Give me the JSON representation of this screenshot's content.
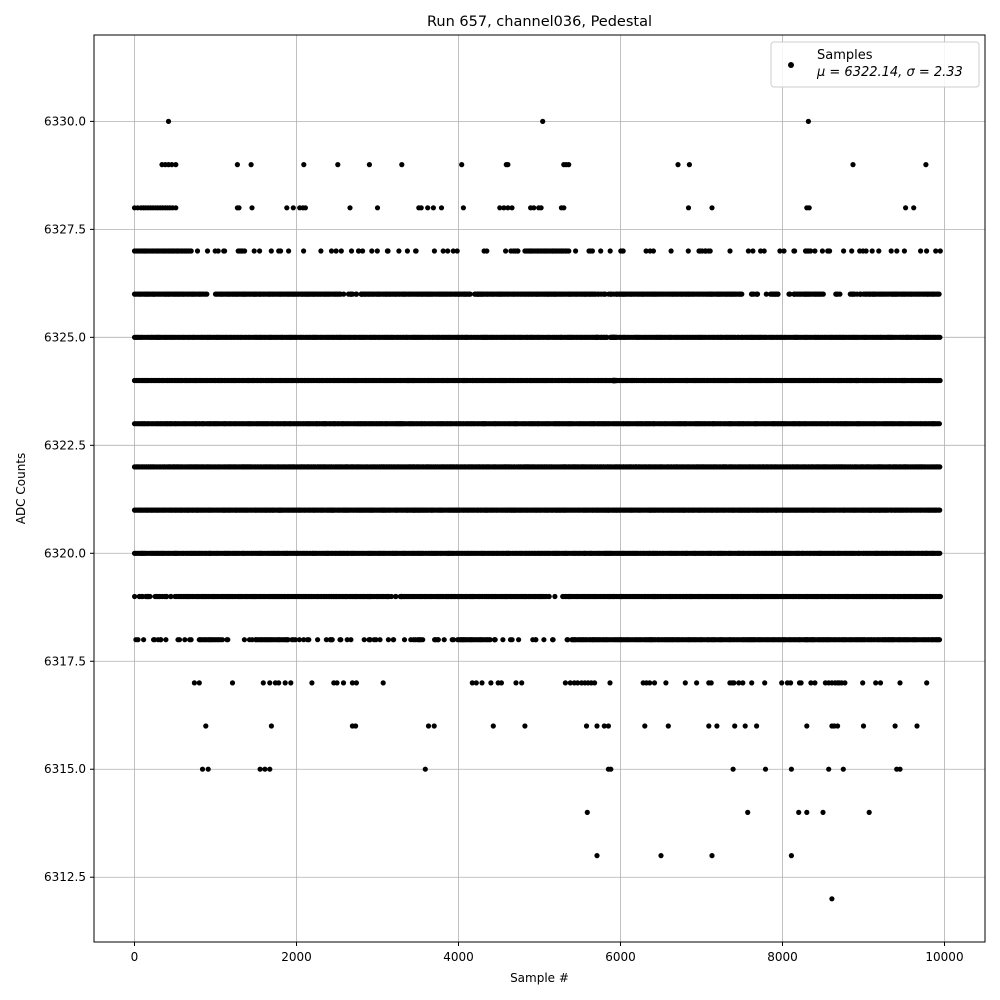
{
  "chart_data": {
    "type": "scatter",
    "title": "Run 657, channel036, Pedestal",
    "xlabel": "Sample #",
    "ylabel": "ADC Counts",
    "xlim": [
      -500,
      10500
    ],
    "ylim": [
      6311.0,
      6332.0
    ],
    "x_ticks": [
      0,
      2000,
      4000,
      6000,
      8000,
      10000
    ],
    "x_tick_labels": [
      "0",
      "2000",
      "4000",
      "6000",
      "8000",
      "10000"
    ],
    "y_ticks": [
      6312.5,
      6315.0,
      6317.5,
      6320.0,
      6322.5,
      6325.0,
      6327.5,
      6330.0
    ],
    "y_tick_labels": [
      "6312.5",
      "6315.0",
      "6317.5",
      "6320.0",
      "6322.5",
      "6325.0",
      "6327.5",
      "6330.0"
    ],
    "grid": true,
    "legend": {
      "position": "top-right",
      "label": "Samples",
      "stats_text": "μ = 6322.14, σ = 2.33"
    },
    "series": [
      {
        "name": "Samples",
        "color": "#000000",
        "x_range": [
          0,
          9950
        ],
        "mean": 6322.14,
        "std": 2.33,
        "levels": [
          {
            "y": 6330,
            "x": [
              420,
              5040,
              8320
            ]
          },
          {
            "y": 6329,
            "x": [
              340,
              380,
              420,
              460,
              510,
              1270,
              1440,
              2090,
              2510,
              2900,
              3300,
              4040,
              4590,
              4610,
              5300,
              5330,
              5360,
              6710,
              6850,
              8870,
              9770
            ]
          },
          {
            "y": 6328,
            "x": [
              0,
              40,
              80,
              110,
              140,
              170,
              200,
              230,
              260,
              290,
              320,
              350,
              380,
              410,
              440,
              470,
              510,
              1270,
              1290,
              1450,
              1880,
              1960,
              2040,
              2080,
              2110,
              2660,
              3000,
              3510,
              3540,
              3620,
              3690,
              3790,
              4060,
              4510,
              4560,
              4610,
              4660,
              4890,
              4930,
              4990,
              5020,
              5270,
              5300,
              6840,
              7130,
              8300,
              8330,
              9520,
              9620
            ]
          },
          {
            "y": 6327,
            "dense": [
              [
                0,
                700
              ],
              [
                1280,
                1340
              ],
              [
                4820,
                5380
              ],
              [
                8290,
                8350
              ]
            ],
            "sparse_count": 95
          },
          {
            "y": 6326,
            "dense": [
              [
                0,
                900
              ],
              [
                1000,
                2550
              ],
              [
                2800,
                4150
              ],
              [
                4250,
                5700
              ],
              [
                5950,
                7500
              ],
              [
                8150,
                8500
              ],
              [
                9000,
                9950
              ]
            ],
            "sparse_count": 60
          },
          {
            "y": 6325,
            "dense": [
              [
                0,
                5700
              ],
              [
                5950,
                9950
              ]
            ],
            "sparse_count": 30
          },
          {
            "y": 6324,
            "dense": [
              [
                0,
                5900
              ],
              [
                5950,
                9950
              ]
            ],
            "sparse_count": 20
          },
          {
            "y": 6323,
            "dense": [
              [
                0,
                9950
              ]
            ],
            "sparse_count": 10
          },
          {
            "y": 6322,
            "dense": [
              [
                0,
                9950
              ]
            ],
            "sparse_count": 10
          },
          {
            "y": 6321,
            "dense": [
              [
                0,
                9950
              ]
            ],
            "sparse_count": 10
          },
          {
            "y": 6320,
            "dense": [
              [
                0,
                9950
              ]
            ],
            "sparse_count": 20
          },
          {
            "y": 6319,
            "dense": [
              [
                500,
                3100
              ],
              [
                3300,
                5000
              ],
              [
                5300,
                9950
              ]
            ],
            "sparse_count": 45
          },
          {
            "y": 6318,
            "dense": [
              [
                800,
                1100
              ],
              [
                1500,
                1900
              ],
              [
                4000,
                4400
              ],
              [
                5400,
                9950
              ]
            ],
            "sparse_count": 80
          },
          {
            "y": 6317,
            "x": [
              740,
              800,
              1210,
              1590,
              1670,
              1740,
              1780,
              1860,
              1930,
              2190,
              2460,
              2500,
              2580,
              2690,
              2740,
              3070,
              4170,
              4220,
              4290,
              4400,
              4490,
              4530,
              4710,
              4780,
              5320,
              5380,
              5430,
              5470,
              5520,
              5560,
              5600,
              5640,
              5680,
              5870,
              6280,
              6320,
              6360,
              6420,
              6560,
              6800,
              6940,
              7090,
              7120,
              7350,
              7380,
              7400,
              7460,
              7510,
              7620,
              7780,
              7990,
              8060,
              8100,
              8210,
              8230,
              8350,
              8400,
              8530,
              8570,
              8610,
              8650,
              8680,
              8700,
              8730,
              8770,
              8990,
              9150,
              9210,
              9450,
              9780
            ]
          },
          {
            "y": 6316,
            "x": [
              880,
              1690,
              2690,
              2730,
              3630,
              3700,
              4430,
              4820,
              5580,
              5710,
              5800,
              5850,
              6300,
              6590,
              7090,
              7190,
              7410,
              7540,
              7680,
              8300,
              8610,
              8640,
              8680,
              9000,
              9390,
              9660
            ]
          },
          {
            "y": 6315,
            "x": [
              840,
              910,
              1550,
              1610,
              1670,
              3590,
              5850,
              5880,
              7390,
              7790,
              8110,
              8570,
              8750,
              9410,
              9450
            ]
          },
          {
            "y": 6314,
            "x": [
              5590,
              7570,
              8200,
              8300,
              8500,
              9070
            ]
          },
          {
            "y": 6313,
            "x": [
              5710,
              6500,
              7130,
              8110
            ]
          },
          {
            "y": 6312,
            "x": [
              8610
            ]
          }
        ]
      }
    ]
  }
}
